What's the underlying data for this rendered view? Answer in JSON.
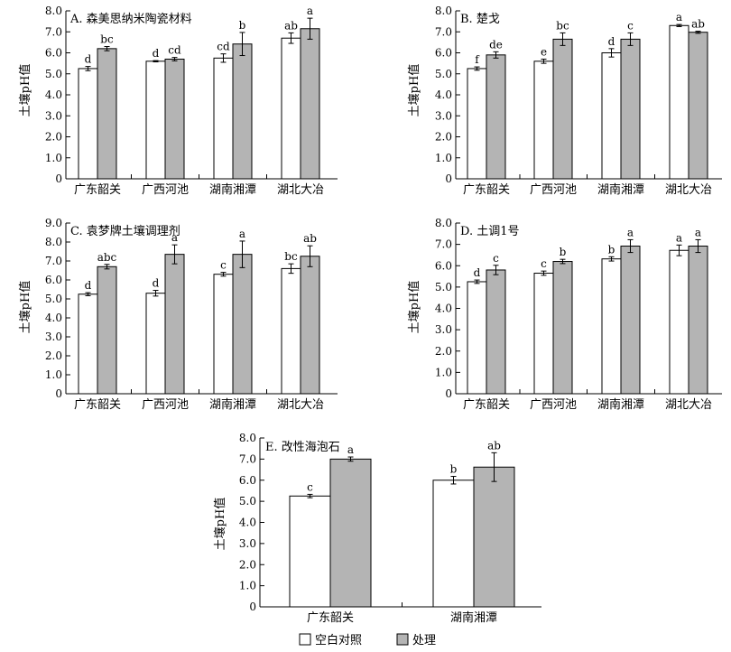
{
  "legend": {
    "control_label": "空白对照",
    "treatment_label": "处理",
    "control_color": "#ffffff",
    "treatment_color": "#b4b4b4"
  },
  "chart_data": [
    {
      "type": "bar",
      "title": "A. 森美思纳米陶瓷材料",
      "ylabel": "土壤pH值",
      "ylim": [
        0,
        8
      ],
      "yticks": [
        "0",
        "1.0",
        "2.0",
        "3.0",
        "4.0",
        "5.0",
        "6.0",
        "7.0",
        "8.0"
      ],
      "categories": [
        "广东韶关",
        "广西河池",
        "湖南湘潭",
        "湖北大冶"
      ],
      "series": [
        {
          "name": "空白对照",
          "values": [
            5.25,
            5.6,
            5.75,
            6.7
          ],
          "errors": [
            0.1,
            0.03,
            0.2,
            0.25
          ],
          "labels": [
            "d",
            "d",
            "cd",
            "ab"
          ]
        },
        {
          "name": "处理",
          "values": [
            6.2,
            5.7,
            6.42,
            7.15
          ],
          "errors": [
            0.1,
            0.08,
            0.55,
            0.5
          ],
          "labels": [
            "bc",
            "cd",
            "b",
            "a"
          ]
        }
      ]
    },
    {
      "type": "bar",
      "title": "B. 楚戈",
      "ylabel": "土壤pH值",
      "ylim": [
        0,
        8
      ],
      "yticks": [
        "0",
        "1.0",
        "2.0",
        "3.0",
        "4.0",
        "5.0",
        "6.0",
        "7.0",
        "8.0"
      ],
      "categories": [
        "广东韶关",
        "广西河池",
        "湖南湘潭",
        "湖北大冶"
      ],
      "series": [
        {
          "name": "空白对照",
          "values": [
            5.25,
            5.6,
            6.0,
            7.3
          ],
          "errors": [
            0.08,
            0.1,
            0.2,
            0.05
          ],
          "labels": [
            "f",
            "e",
            "d",
            "a"
          ]
        },
        {
          "name": "处理",
          "values": [
            5.9,
            6.65,
            6.65,
            6.98
          ],
          "errors": [
            0.15,
            0.3,
            0.3,
            0.05
          ],
          "labels": [
            "de",
            "bc",
            "c",
            "ab"
          ]
        }
      ]
    },
    {
      "type": "bar",
      "title": "C. 袁梦牌土壤调理剂",
      "ylabel": "土壤pH值",
      "ylim": [
        0,
        9
      ],
      "yticks": [
        "0",
        "1.0",
        "2.0",
        "3.0",
        "4.0",
        "5.0",
        "6.0",
        "7.0",
        "8.0",
        "9.0"
      ],
      "categories": [
        "广东韶关",
        "广西河池",
        "湖南湘潭",
        "湖北大冶"
      ],
      "series": [
        {
          "name": "空白对照",
          "values": [
            5.25,
            5.3,
            6.3,
            6.6
          ],
          "errors": [
            0.08,
            0.15,
            0.1,
            0.25
          ],
          "labels": [
            "d",
            "d",
            "c",
            "bc"
          ]
        },
        {
          "name": "处理",
          "values": [
            6.7,
            7.35,
            7.35,
            7.25
          ],
          "errors": [
            0.12,
            0.5,
            0.7,
            0.55
          ],
          "labels": [
            "abc",
            "a",
            "a",
            "ab"
          ]
        }
      ]
    },
    {
      "type": "bar",
      "title": "D. 土调1号",
      "ylabel": "土壤pH值",
      "ylim": [
        0,
        8
      ],
      "yticks": [
        "0",
        "1.0",
        "2.0",
        "3.0",
        "4.0",
        "5.0",
        "6.0",
        "7.0",
        "8.0"
      ],
      "categories": [
        "广东韶关",
        "广西河池",
        "湖南湘潭",
        "湖北大冶"
      ],
      "series": [
        {
          "name": "空白对照",
          "values": [
            5.25,
            5.65,
            6.32,
            6.72
          ],
          "errors": [
            0.08,
            0.1,
            0.1,
            0.25
          ],
          "labels": [
            "d",
            "c",
            "b",
            "a"
          ]
        },
        {
          "name": "处理",
          "values": [
            5.8,
            6.2,
            6.92,
            6.92
          ],
          "errors": [
            0.22,
            0.1,
            0.3,
            0.3
          ],
          "labels": [
            "c",
            "b",
            "a",
            "a"
          ]
        }
      ]
    },
    {
      "type": "bar",
      "title": "E. 改性海泡石",
      "ylabel": "土壤pH值",
      "ylim": [
        0,
        8
      ],
      "yticks": [
        "0",
        "1.0",
        "2.0",
        "3.0",
        "4.0",
        "5.0",
        "6.0",
        "7.0",
        "8.0"
      ],
      "categories": [
        "广东韶关",
        "湖南湘潭"
      ],
      "series": [
        {
          "name": "空白对照",
          "values": [
            5.25,
            6.0
          ],
          "errors": [
            0.08,
            0.18
          ],
          "labels": [
            "c",
            "b"
          ]
        },
        {
          "name": "处理",
          "values": [
            7.0,
            6.62
          ],
          "errors": [
            0.1,
            0.68
          ],
          "labels": [
            "a",
            "ab"
          ]
        }
      ]
    }
  ]
}
